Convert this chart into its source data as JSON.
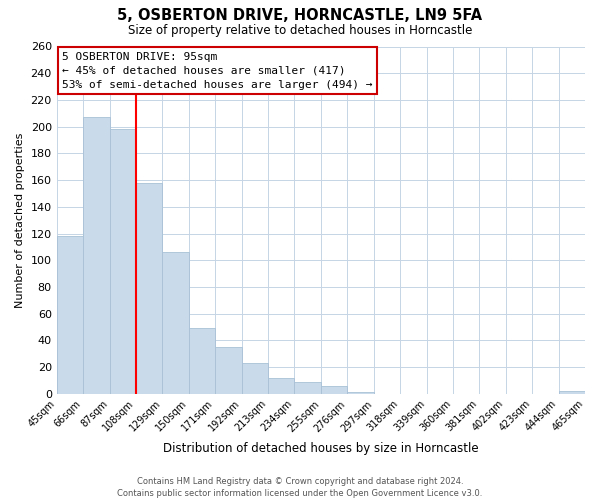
{
  "title": "5, OSBERTON DRIVE, HORNCASTLE, LN9 5FA",
  "subtitle": "Size of property relative to detached houses in Horncastle",
  "xlabel": "Distribution of detached houses by size in Horncastle",
  "ylabel": "Number of detached properties",
  "bar_values": [
    118,
    207,
    198,
    158,
    106,
    49,
    35,
    23,
    12,
    9,
    6,
    1,
    0,
    0,
    0,
    0,
    0,
    0,
    0,
    2
  ],
  "bin_labels": [
    "45sqm",
    "66sqm",
    "87sqm",
    "108sqm",
    "129sqm",
    "150sqm",
    "171sqm",
    "192sqm",
    "213sqm",
    "234sqm",
    "255sqm",
    "276sqm",
    "297sqm",
    "318sqm",
    "339sqm",
    "360sqm",
    "381sqm",
    "402sqm",
    "423sqm",
    "444sqm",
    "465sqm"
  ],
  "bar_color": "#c9daea",
  "bar_edge_color": "#a8c0d6",
  "red_line_x": 2,
  "ylim": [
    0,
    260
  ],
  "yticks": [
    0,
    20,
    40,
    60,
    80,
    100,
    120,
    140,
    160,
    180,
    200,
    220,
    240,
    260
  ],
  "annotation_title": "5 OSBERTON DRIVE: 95sqm",
  "annotation_line1": "← 45% of detached houses are smaller (417)",
  "annotation_line2": "53% of semi-detached houses are larger (494) →",
  "annotation_box_color": "#ffffff",
  "annotation_box_edge": "#cc0000",
  "footer_line1": "Contains HM Land Registry data © Crown copyright and database right 2024.",
  "footer_line2": "Contains public sector information licensed under the Open Government Licence v3.0.",
  "background_color": "#ffffff",
  "grid_color": "#c5d5e5"
}
